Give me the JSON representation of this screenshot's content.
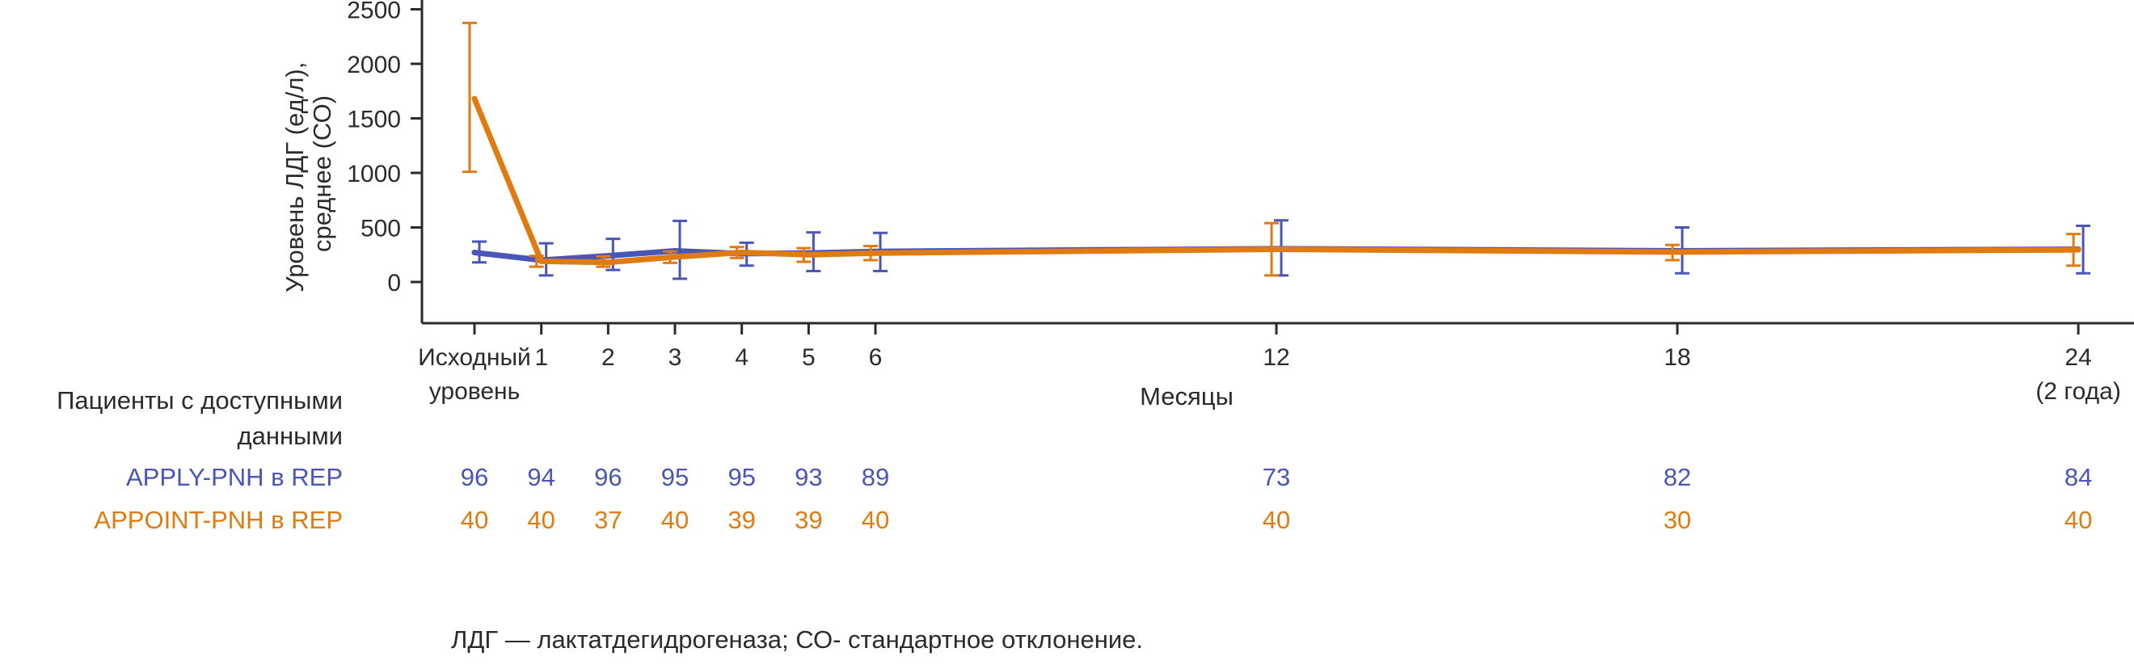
{
  "chart_data": {
    "type": "line",
    "ylabel": [
      "Уровень ЛДГ (ед/л),",
      "среднее (СО)"
    ],
    "xlabel": "Месяцы",
    "ylim": [
      -350,
      2550
    ],
    "yticks": [
      0,
      500,
      1000,
      1500,
      2000,
      2500
    ],
    "grid": false,
    "x": [
      0,
      1,
      2,
      3,
      4,
      5,
      6,
      12,
      18,
      24
    ],
    "x_tick_labels": [
      [
        "Исходный",
        "уровень"
      ],
      [
        "1"
      ],
      [
        "2"
      ],
      [
        "3"
      ],
      [
        "4"
      ],
      [
        "5"
      ],
      [
        "6"
      ],
      [
        "12"
      ],
      [
        "18"
      ],
      [
        "24",
        "(2 года)"
      ]
    ],
    "series": [
      {
        "name": "APPLY-PNH в REP",
        "color": "#4a55b8",
        "values": [
          270,
          200,
          240,
          285,
          260,
          265,
          280,
          305,
          285,
          300
        ],
        "error_low": [
          180,
          60,
          110,
          30,
          150,
          100,
          100,
          60,
          80,
          80
        ],
        "error_high": [
          370,
          355,
          395,
          560,
          360,
          455,
          450,
          565,
          500,
          515
        ]
      },
      {
        "name": "APPOINT-PNH в REP",
        "color": "#e07b12",
        "values": [
          1680,
          190,
          180,
          230,
          270,
          250,
          265,
          300,
          275,
          295
        ],
        "error_low": [
          1010,
          140,
          140,
          175,
          220,
          185,
          200,
          60,
          200,
          150
        ],
        "error_high": [
          2375,
          240,
          235,
          280,
          320,
          310,
          330,
          540,
          340,
          440
        ]
      }
    ],
    "patients_table": {
      "header": [
        "Пациенты с доступными",
        "данными"
      ],
      "rows": [
        {
          "label": "APPLY-PNH в REP",
          "color": "#4a55b8",
          "values": [
            "96",
            "94",
            "96",
            "95",
            "95",
            "93",
            "89",
            "73",
            "82",
            "84"
          ]
        },
        {
          "label": "APPOINT-PNH в REP",
          "color": "#e07b12",
          "values": [
            "40",
            "40",
            "37",
            "40",
            "39",
            "39",
            "40",
            "40",
            "30",
            "40"
          ]
        }
      ]
    },
    "footnote": "ЛДГ — лактатдегидрогеназа; СО- стандартное отклонение."
  }
}
